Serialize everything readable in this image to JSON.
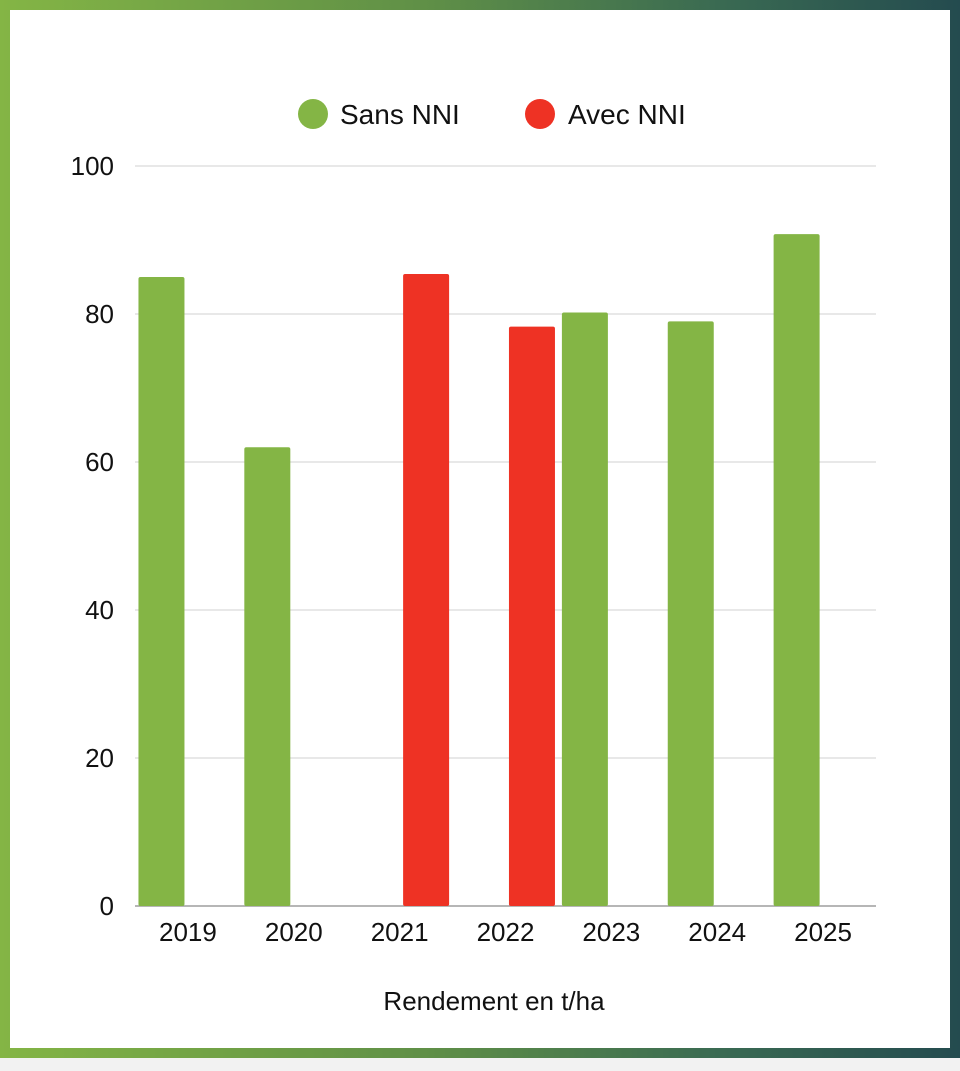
{
  "chart_data": {
    "type": "bar",
    "categories": [
      "2019",
      "2020",
      "2021",
      "2022",
      "2023",
      "2024",
      "2025"
    ],
    "series": [
      {
        "name": "Sans NNI",
        "color": "#84b545",
        "values": [
          85,
          62,
          null,
          null,
          80.2,
          79,
          90.8
        ]
      },
      {
        "name": "Avec NNI",
        "color": "#ee3224",
        "values": [
          null,
          null,
          85.4,
          78.3,
          null,
          null,
          null
        ]
      }
    ],
    "xlabel": "Rendement en t/ha",
    "ylabel": "",
    "ylim": [
      0,
      100
    ],
    "yticks": [
      "0",
      "20",
      "40",
      "60",
      "80",
      "100"
    ],
    "grid": true,
    "legend_position": "top-center"
  }
}
